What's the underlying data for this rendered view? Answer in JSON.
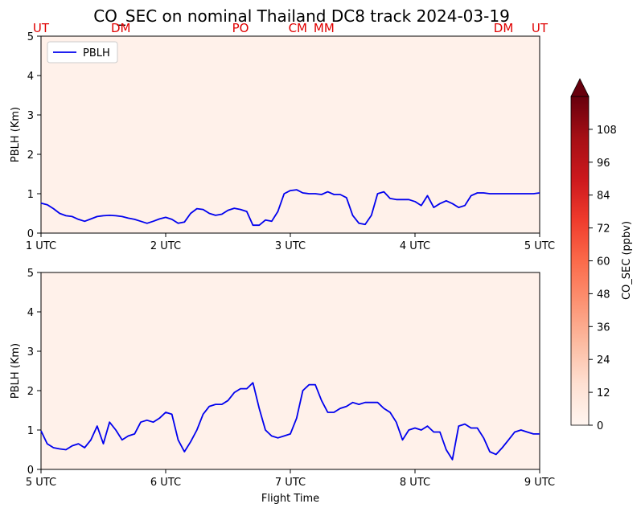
{
  "title": "CO_SEC on nominal Thailand DC8 track 2024-03-19",
  "colors": {
    "pblh_line": "#0000ee",
    "site_label": "#e00000",
    "field": "#fff1ea"
  },
  "colorbar": {
    "label": "CO_SEC (ppbv)",
    "ticks": [
      "0",
      "12",
      "24",
      "36",
      "48",
      "60",
      "72",
      "84",
      "96",
      "108"
    ],
    "range": [
      0,
      120
    ],
    "extend": "max",
    "colormap": "Reds"
  },
  "chart_data": [
    {
      "type": "line",
      "title": "CO_SEC on nominal Thailand DC8 track 2024-03-19",
      "xlabel": "",
      "ylabel": "PBLH (Km)",
      "xlim": [
        1,
        5
      ],
      "ylim": [
        0,
        5
      ],
      "x_ticks": [
        1,
        2,
        3,
        4,
        5
      ],
      "x_tick_labels": [
        "1 UTC",
        "2 UTC",
        "3 UTC",
        "4 UTC",
        "5 UTC"
      ],
      "y_ticks": [
        0,
        1,
        2,
        3,
        4,
        5
      ],
      "y_tick_labels": [
        "0",
        "1",
        "2",
        "3",
        "4",
        "5"
      ],
      "legend": {
        "position": "top-left",
        "entries": [
          "PBLH"
        ]
      },
      "site_labels": [
        {
          "text": "UT",
          "x": 1.0
        },
        {
          "text": "DM",
          "x": 1.64
        },
        {
          "text": "PO",
          "x": 2.6
        },
        {
          "text": "CM",
          "x": 3.06
        },
        {
          "text": "MM",
          "x": 3.27
        },
        {
          "text": "DM",
          "x": 4.71
        },
        {
          "text": "UT",
          "x": 5.0
        }
      ],
      "series": [
        {
          "name": "PBLH",
          "x": [
            1.0,
            1.05,
            1.1,
            1.15,
            1.2,
            1.25,
            1.3,
            1.35,
            1.4,
            1.45,
            1.5,
            1.55,
            1.6,
            1.65,
            1.7,
            1.75,
            1.8,
            1.85,
            1.9,
            1.95,
            2.0,
            2.05,
            2.1,
            2.15,
            2.2,
            2.25,
            2.3,
            2.35,
            2.4,
            2.45,
            2.5,
            2.55,
            2.6,
            2.65,
            2.7,
            2.75,
            2.8,
            2.85,
            2.9,
            2.95,
            3.0,
            3.05,
            3.1,
            3.15,
            3.2,
            3.25,
            3.3,
            3.35,
            3.4,
            3.45,
            3.5,
            3.55,
            3.6,
            3.65,
            3.7,
            3.75,
            3.8,
            3.85,
            3.9,
            3.95,
            4.0,
            4.05,
            4.1,
            4.15,
            4.2,
            4.25,
            4.3,
            4.35,
            4.4,
            4.45,
            4.5,
            4.55,
            4.6,
            4.65,
            4.7,
            4.75,
            4.8,
            4.85,
            4.9,
            4.95,
            5.0
          ],
          "y": [
            0.76,
            0.72,
            0.62,
            0.5,
            0.44,
            0.42,
            0.35,
            0.3,
            0.36,
            0.42,
            0.44,
            0.45,
            0.44,
            0.42,
            0.38,
            0.35,
            0.3,
            0.25,
            0.3,
            0.36,
            0.4,
            0.35,
            0.25,
            0.28,
            0.5,
            0.62,
            0.6,
            0.5,
            0.45,
            0.48,
            0.58,
            0.63,
            0.6,
            0.55,
            0.2,
            0.2,
            0.33,
            0.3,
            0.55,
            1.0,
            1.08,
            1.1,
            1.02,
            1.0,
            1.0,
            0.98,
            1.05,
            0.98,
            0.98,
            0.9,
            0.45,
            0.25,
            0.22,
            0.45,
            1.0,
            1.05,
            0.88,
            0.85,
            0.85,
            0.85,
            0.8,
            0.7,
            0.95,
            0.65,
            0.75,
            0.82,
            0.75,
            0.65,
            0.7,
            0.95,
            1.02,
            1.02,
            1.0,
            1.0,
            1.0,
            1.0,
            1.0,
            1.0,
            1.0,
            1.0,
            1.02
          ]
        }
      ]
    },
    {
      "type": "line",
      "title": "",
      "xlabel": "Flight Time",
      "ylabel": "PBLH (Km)",
      "xlim": [
        5,
        9
      ],
      "ylim": [
        0,
        5
      ],
      "x_ticks": [
        5,
        6,
        7,
        8,
        9
      ],
      "x_tick_labels": [
        "5 UTC",
        "6 UTC",
        "7 UTC",
        "8 UTC",
        "9 UTC"
      ],
      "y_ticks": [
        0,
        1,
        2,
        3,
        4,
        5
      ],
      "y_tick_labels": [
        "0",
        "1",
        "2",
        "3",
        "4",
        "5"
      ],
      "series": [
        {
          "name": "PBLH",
          "x": [
            5.0,
            5.05,
            5.1,
            5.15,
            5.2,
            5.25,
            5.3,
            5.35,
            5.4,
            5.45,
            5.5,
            5.55,
            5.6,
            5.65,
            5.7,
            5.75,
            5.8,
            5.85,
            5.9,
            5.95,
            6.0,
            6.05,
            6.1,
            6.15,
            6.2,
            6.25,
            6.3,
            6.35,
            6.4,
            6.45,
            6.5,
            6.55,
            6.6,
            6.65,
            6.7,
            6.75,
            6.8,
            6.85,
            6.9,
            6.95,
            7.0,
            7.05,
            7.1,
            7.15,
            7.2,
            7.25,
            7.3,
            7.35,
            7.4,
            7.45,
            7.5,
            7.55,
            7.6,
            7.65,
            7.7,
            7.75,
            7.8,
            7.85,
            7.9,
            7.95,
            8.0,
            8.05,
            8.1,
            8.15,
            8.2,
            8.25,
            8.3,
            8.35,
            8.4,
            8.45,
            8.5,
            8.55,
            8.6,
            8.65,
            8.7,
            8.75,
            8.8,
            8.85,
            8.9,
            8.95,
            9.0
          ],
          "y": [
            0.98,
            0.65,
            0.55,
            0.52,
            0.5,
            0.6,
            0.65,
            0.55,
            0.75,
            1.1,
            0.65,
            1.2,
            1.0,
            0.75,
            0.85,
            0.9,
            1.2,
            1.25,
            1.2,
            1.3,
            1.45,
            1.4,
            0.75,
            0.45,
            0.7,
            1.0,
            1.4,
            1.6,
            1.65,
            1.65,
            1.75,
            1.95,
            2.05,
            2.05,
            2.2,
            1.55,
            1.0,
            0.85,
            0.8,
            0.85,
            0.9,
            1.3,
            2.0,
            2.15,
            2.15,
            1.75,
            1.45,
            1.45,
            1.55,
            1.6,
            1.7,
            1.65,
            1.7,
            1.7,
            1.7,
            1.55,
            1.45,
            1.2,
            0.75,
            1.0,
            1.05,
            1.0,
            1.1,
            0.95,
            0.95,
            0.5,
            0.25,
            1.1,
            1.15,
            1.05,
            1.05,
            0.8,
            0.45,
            0.38,
            0.55,
            0.75,
            0.95,
            1.0,
            0.95,
            0.9,
            0.9
          ]
        }
      ]
    }
  ]
}
